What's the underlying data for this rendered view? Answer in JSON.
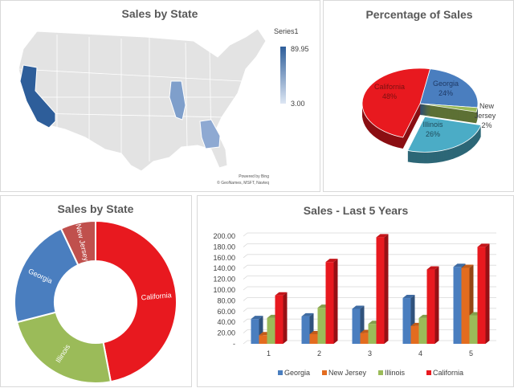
{
  "chart_data": [
    {
      "type": "map",
      "title": "Sales by State",
      "legend": {
        "title": "Series1",
        "max": 89.95,
        "min": 3.0,
        "max_label": "89.95",
        "min_label": "3.00"
      },
      "highlighted_states": [
        {
          "name": "California",
          "level": "high"
        },
        {
          "name": "Illinois",
          "level": "medium"
        },
        {
          "name": "Georgia",
          "level": "medium"
        }
      ],
      "attribution": [
        "Powered by Bing",
        "© GeoNames, MSFT, Navteq"
      ],
      "colors": {
        "high": "#2e5e9a",
        "medium": "#7f9fcb",
        "base": "#e3e3e3"
      }
    },
    {
      "type": "pie",
      "title": "Percentage of Sales",
      "style": "3d-exploded",
      "slices": [
        {
          "name": "Georgia",
          "label": "24%",
          "value": 24,
          "color": "#4a7ebf"
        },
        {
          "name": "New Jersey",
          "label": "2%",
          "value": 2,
          "color": "#9bbb59"
        },
        {
          "name": "Illinois",
          "label": "26%",
          "value": 26,
          "color": "#4bacc6"
        },
        {
          "name": "California",
          "label": "48%",
          "value": 48,
          "color": "#e8191f"
        }
      ]
    },
    {
      "type": "donut",
      "title": "Sales by State",
      "slices": [
        {
          "name": "California",
          "value": 47,
          "color": "#e8191f"
        },
        {
          "name": "Illinois",
          "value": 24,
          "color": "#9bbb59"
        },
        {
          "name": "Georgia",
          "value": 22,
          "color": "#4a7ebf"
        },
        {
          "name": "New Jersey",
          "value": 7,
          "color": "#c0504d"
        }
      ]
    },
    {
      "type": "bar",
      "style": "3d-clustered",
      "title": "Sales - Last 5 Years",
      "categories": [
        "1",
        "2",
        "3",
        "4",
        "5"
      ],
      "ylim": [
        0,
        200
      ],
      "yticks": [
        "-",
        "20.00",
        "40.00",
        "60.00",
        "80.00",
        "100.00",
        "120.00",
        "140.00",
        "160.00",
        "180.00",
        "200.00"
      ],
      "grid": true,
      "legend": "bottom",
      "series": [
        {
          "name": "Georgia",
          "color": "#4a7ebf",
          "values": [
            46,
            51,
            65,
            85,
            143
          ]
        },
        {
          "name": "New Jersey",
          "color": "#e36c1f",
          "values": [
            16,
            18,
            20,
            33,
            141
          ]
        },
        {
          "name": "Illinois",
          "color": "#9bbb59",
          "values": [
            48,
            67,
            37,
            48,
            53
          ]
        },
        {
          "name": "California",
          "color": "#e8191f",
          "values": [
            90,
            152,
            198,
            138,
            180
          ]
        }
      ]
    }
  ]
}
